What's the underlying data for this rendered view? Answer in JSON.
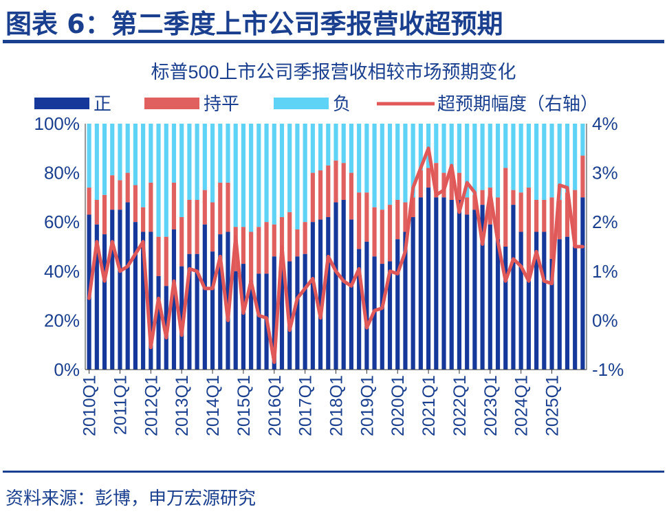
{
  "figure_title": "图表 6：第二季度上市公司季报营收超预期",
  "source_note": "资料来源：彭博，申万宏源研究",
  "colors": {
    "positive": "#15389a",
    "flat": "#e06060",
    "negative": "#5fd3f5",
    "line": "#e05858",
    "text": "#1a3f8f"
  },
  "chart_data": {
    "type": "bar",
    "stacked": true,
    "title": "标普500上市公司季报营收相较市场预期变化",
    "legend": [
      "正",
      "持平",
      "负",
      "超预期幅度（右轴）"
    ],
    "legend_position": "top",
    "y_left": {
      "ticks": [
        "0%",
        "20%",
        "40%",
        "60%",
        "80%",
        "100%"
      ],
      "range": [
        0,
        100
      ]
    },
    "y_right": {
      "ticks": [
        "-1%",
        "0%",
        "1%",
        "2%",
        "3%",
        "4%"
      ],
      "range": [
        -1,
        4
      ]
    },
    "x_tick_labels": [
      "2010Q1",
      "2011Q1",
      "2012Q1",
      "2013Q1",
      "2014Q1",
      "2015Q1",
      "2016Q1",
      "2017Q1",
      "2018Q1",
      "2019Q1",
      "2020Q1",
      "2021Q1",
      "2022Q1",
      "2023Q1",
      "2024Q1",
      "2025Q1"
    ],
    "grid": false,
    "series": [
      {
        "name": "正",
        "values": [
          63,
          59,
          55,
          65,
          65,
          68,
          60,
          56,
          56,
          38,
          34,
          57,
          42,
          47,
          47,
          59,
          48,
          55,
          56,
          40,
          43,
          36,
          39,
          39,
          46,
          42,
          44,
          46,
          47,
          60,
          61,
          62,
          68,
          69,
          61,
          49,
          52,
          46,
          43,
          44,
          53,
          56,
          62,
          70,
          74,
          70,
          70,
          69,
          69,
          63,
          65,
          67,
          59,
          53,
          50,
          67,
          56,
          36,
          56,
          56,
          45,
          53,
          54,
          50,
          70
        ]
      },
      {
        "name": "持平",
        "values": [
          11,
          10,
          16,
          14,
          12,
          12,
          15,
          10,
          20,
          16,
          20,
          19,
          20,
          22,
          22,
          14,
          20,
          21,
          20,
          18,
          15,
          20,
          19,
          21,
          13,
          20,
          20,
          11,
          13,
          20,
          20,
          21,
          17,
          15,
          19,
          23,
          20,
          20,
          22,
          23,
          16,
          12,
          8,
          11,
          8,
          14,
          10,
          11,
          11,
          7,
          6,
          6,
          15,
          17,
          32,
          6,
          16,
          38,
          13,
          13,
          25,
          16,
          18,
          23,
          17
        ]
      },
      {
        "name": "超预期幅度（右轴）",
        "values": [
          0.45,
          1.6,
          0.8,
          1.6,
          1.0,
          1.1,
          1.35,
          1.6,
          -0.55,
          0.45,
          -0.35,
          0.8,
          -0.3,
          1.05,
          1.0,
          0.65,
          0.65,
          1.3,
          0.0,
          1.7,
          0.15,
          0.8,
          0.1,
          0.05,
          -0.85,
          1.5,
          -0.2,
          0.45,
          0.65,
          0.85,
          0.05,
          1.3,
          1.0,
          0.8,
          0.7,
          1.05,
          -0.15,
          0.2,
          0.25,
          1.0,
          0.95,
          1.4,
          2.7,
          3.1,
          3.5,
          2.55,
          2.65,
          3.15,
          2.2,
          2.8,
          2.6,
          1.55,
          2.6,
          1.6,
          0.8,
          1.25,
          1.1,
          0.8,
          1.4,
          0.8,
          0.75,
          2.75,
          2.7,
          1.5,
          1.5
        ]
      }
    ]
  }
}
